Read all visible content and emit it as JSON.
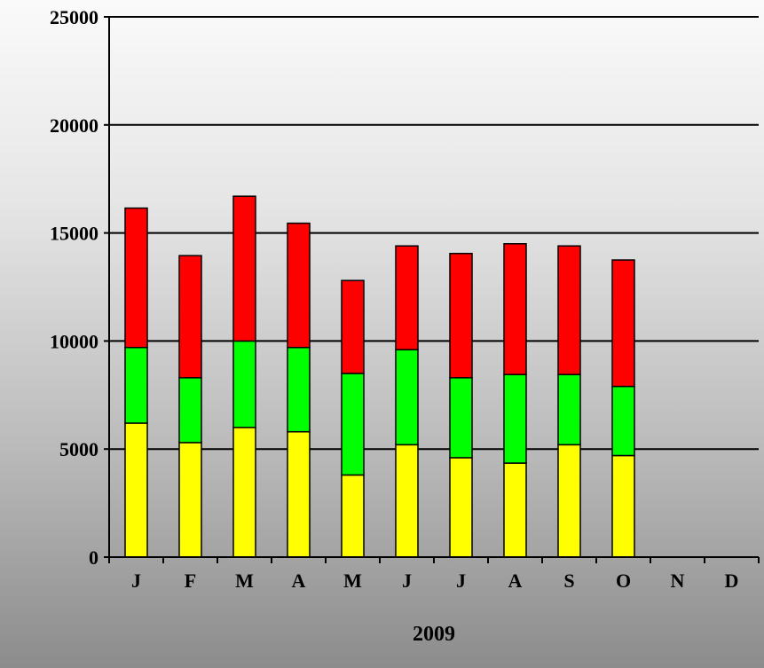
{
  "chart_data": {
    "type": "bar",
    "stacked": true,
    "categories": [
      "J",
      "F",
      "M",
      "A",
      "M",
      "J",
      "J",
      "A",
      "S",
      "O",
      "N",
      "D"
    ],
    "series": [
      {
        "color": "#ffff00",
        "values": [
          6200,
          5300,
          6000,
          5800,
          3800,
          5200,
          4600,
          4350,
          5200,
          4700,
          null,
          null
        ]
      },
      {
        "color": "#00ff00",
        "values": [
          3500,
          3000,
          4000,
          3900,
          4700,
          4400,
          3700,
          4100,
          3250,
          3200,
          null,
          null
        ]
      },
      {
        "color": "#ff0000",
        "values": [
          6450,
          5650,
          6700,
          5750,
          4300,
          4800,
          5750,
          6050,
          5950,
          5850,
          null,
          null
        ]
      }
    ],
    "xlabel": "2009",
    "ylabel": "",
    "ylim": [
      0,
      25000
    ],
    "yticks": [
      0,
      5000,
      10000,
      15000,
      20000,
      25000
    ],
    "grid": "horizontal"
  }
}
